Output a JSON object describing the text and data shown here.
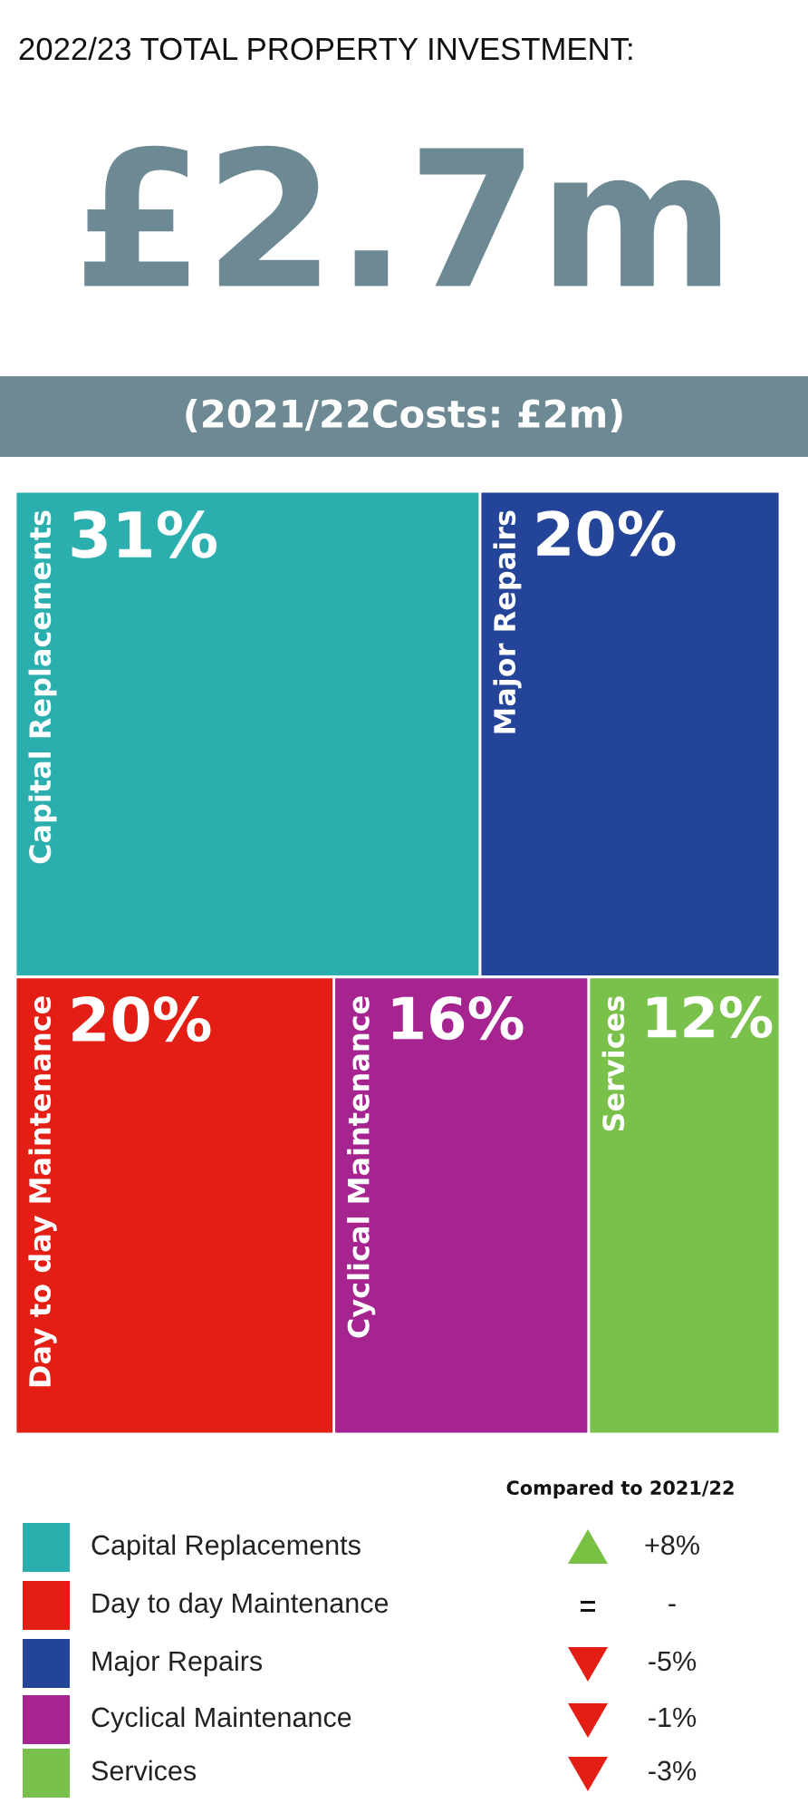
{
  "chart_data": [
    {
      "type": "other",
      "title": "2022/23 TOTAL PROPERTY INVESTMENT:",
      "subtitle": "£2.7m",
      "annotations": [
        "(2021/22Costs: £2m)"
      ],
      "categories": [
        "Capital Replacements",
        "Major Repairs",
        "Day to day Maintenance",
        "Cyclical Maintenance",
        "Services"
      ],
      "values": [
        31,
        20,
        20,
        16,
        12
      ],
      "value_labels": [
        "31%",
        "20%",
        "20%",
        "16%",
        "12%"
      ],
      "colors": [
        "#2aaeae",
        "#234499",
        "#e31e14",
        "#a5248f",
        "#7ac14b"
      ]
    },
    {
      "type": "other",
      "title": "Compared to 2021/22",
      "categories": [
        "Capital Replacements",
        "Day to day Maintenance",
        "Major Repairs",
        "Cyclical Maintenance",
        "Services"
      ],
      "colors": [
        "#2aaeae",
        "#e31e14",
        "#234499",
        "#a5248f",
        "#7ac14b"
      ],
      "values": [
        8,
        null,
        -5,
        -1,
        -3
      ],
      "value_labels": [
        "+8%",
        "-",
        "-5%",
        "-1%",
        "-3%"
      ]
    }
  ]
}
